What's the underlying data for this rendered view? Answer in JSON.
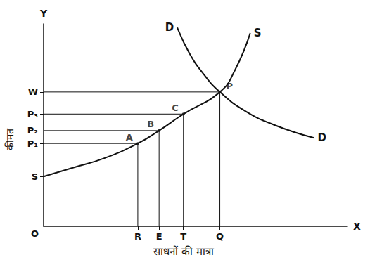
{
  "chart_data": {
    "type": "line",
    "x_label": "साधनों की मात्रा",
    "y_label": "कीमत",
    "x_axis_name": "X",
    "y_axis_name": "Y",
    "origin_label": "O",
    "xlim": [
      0,
      100
    ],
    "ylim": [
      0,
      110
    ],
    "xticks": [
      {
        "value": 31,
        "label": "R"
      },
      {
        "value": 38,
        "label": "E"
      },
      {
        "value": 46,
        "label": "T"
      },
      {
        "value": 58,
        "label": "Q"
      }
    ],
    "yticks": [
      {
        "value": 27,
        "label": "S"
      },
      {
        "value": 45,
        "label": "P₁"
      },
      {
        "value": 52,
        "label": "P₂"
      },
      {
        "value": 61,
        "label": "P₃"
      },
      {
        "value": 73,
        "label": "W"
      }
    ],
    "grid": false,
    "color": "#111111",
    "series": [
      {
        "name": "S",
        "start_label": null,
        "end_label": "S",
        "x": [
          0,
          10,
          20,
          31,
          38,
          46,
          58,
          63,
          68
        ],
        "values": [
          27,
          32,
          37,
          45,
          52,
          61,
          73,
          85,
          105
        ]
      },
      {
        "name": "D",
        "start_label": "D",
        "end_label": "D",
        "x": [
          44,
          48,
          53,
          58,
          66,
          76,
          89
        ],
        "values": [
          108,
          94,
          82,
          73,
          63,
          55,
          48
        ]
      }
    ],
    "points": [
      {
        "label": "A",
        "x": 31,
        "y": 45
      },
      {
        "label": "B",
        "x": 38,
        "y": 52
      },
      {
        "label": "C",
        "x": 46,
        "y": 61
      },
      {
        "label": "P",
        "x": 58,
        "y": 73
      }
    ]
  }
}
